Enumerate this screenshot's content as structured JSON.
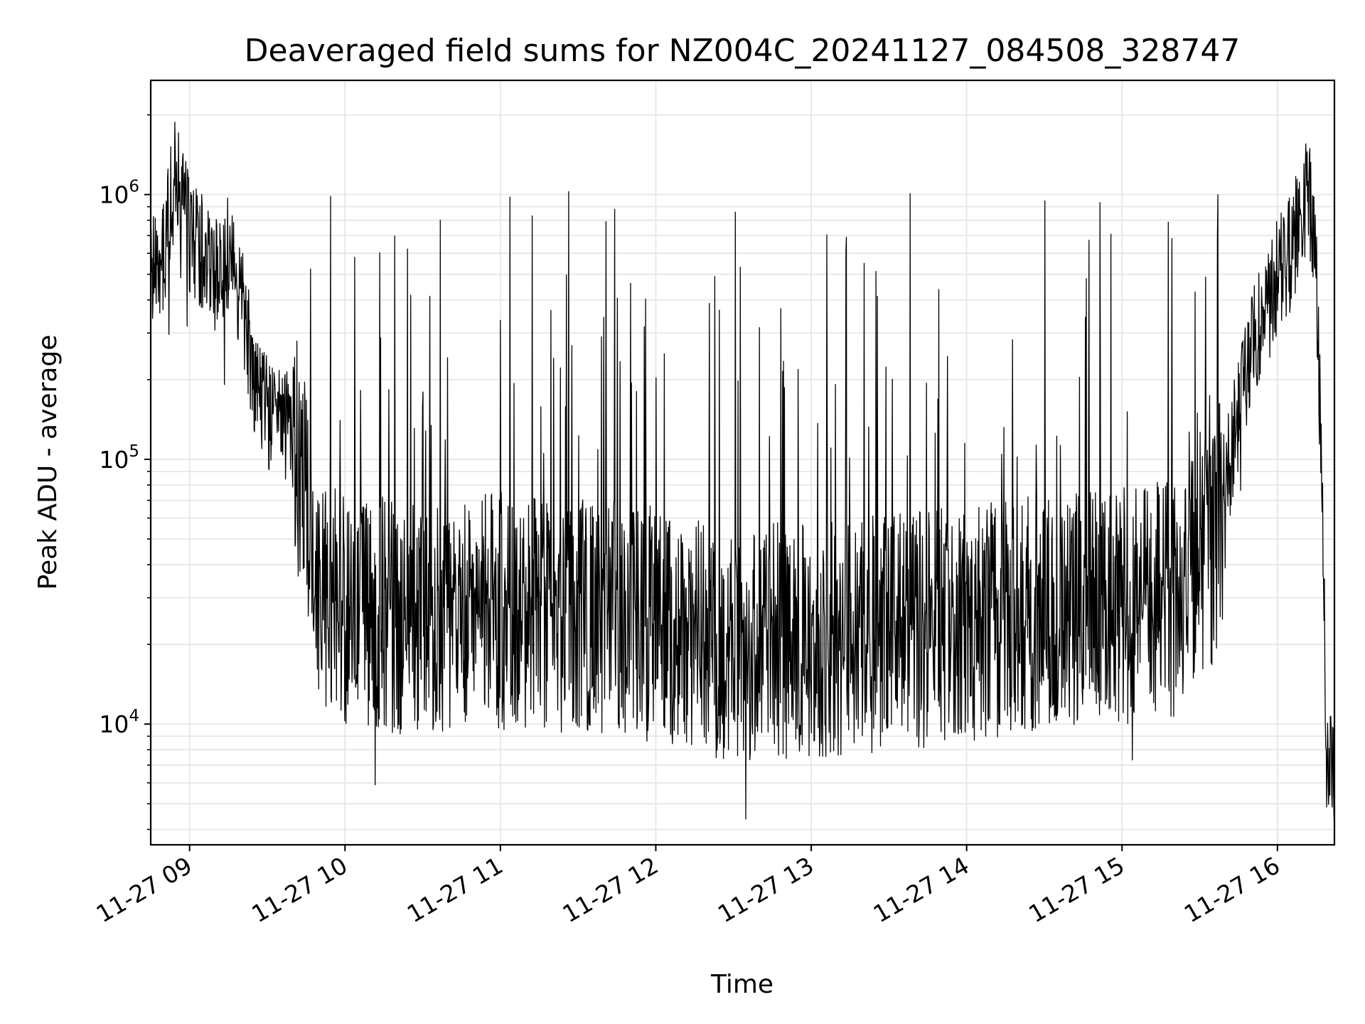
{
  "chart_data": {
    "type": "line",
    "title": "Deaveraged field sums for NZ004C_20241127_084508_328747",
    "xlabel": "Time",
    "ylabel": "Peak ADU - average",
    "yscale": "log",
    "grid": true,
    "line_color": "#000000",
    "grid_color": "#e6e6e6",
    "x_range": [
      "11-27 08:45",
      "11-27 16:22"
    ],
    "ylim": [
      3500,
      2700000
    ],
    "x_ticks": [
      "11-27 09",
      "11-27 10",
      "11-27 11",
      "11-27 12",
      "11-27 13",
      "11-27 14",
      "11-27 15",
      "11-27 16"
    ],
    "y_ticks": [
      {
        "base": "10",
        "exp": "4",
        "value": 10000
      },
      {
        "base": "10",
        "exp": "5",
        "value": 100000
      },
      {
        "base": "10",
        "exp": "6",
        "value": 1000000
      }
    ],
    "series": [
      {
        "points": [
          [
            "11-27 08:45",
            480000
          ],
          [
            "11-27 08:50",
            600000
          ],
          [
            "11-27 08:55",
            1300000
          ],
          [
            "11-27 09:00",
            700000
          ],
          [
            "11-27 09:05",
            600000
          ],
          [
            "11-27 09:10",
            500000
          ],
          [
            "11-27 09:15",
            600000
          ],
          [
            "11-27 09:20",
            400000
          ],
          [
            "11-27 09:25",
            200000
          ],
          [
            "11-27 09:30",
            150000
          ],
          [
            "11-27 09:35",
            140000
          ],
          [
            "11-27 09:40",
            120000
          ],
          [
            "11-27 09:45",
            70000
          ],
          [
            "11-27 09:50",
            35000
          ],
          [
            "11-27 09:55",
            30000
          ],
          [
            "11-27 10:00",
            28000
          ],
          [
            "11-27 10:30",
            25000
          ],
          [
            "11-27 11:00",
            27000
          ],
          [
            "11-27 11:30",
            26000
          ],
          [
            "11-27 12:00",
            24000
          ],
          [
            "11-27 12:30",
            20000
          ],
          [
            "11-27 13:00",
            21000
          ],
          [
            "11-27 13:30",
            22000
          ],
          [
            "11-27 14:00",
            24000
          ],
          [
            "11-27 14:30",
            27000
          ],
          [
            "11-27 15:00",
            28000
          ],
          [
            "11-27 15:20",
            30000
          ],
          [
            "11-27 15:25",
            40000
          ],
          [
            "11-27 15:35",
            45000
          ],
          [
            "11-27 15:40",
            80000
          ],
          [
            "11-27 15:45",
            150000
          ],
          [
            "11-27 15:50",
            280000
          ],
          [
            "11-27 15:55",
            330000
          ],
          [
            "11-27 16:00",
            500000
          ],
          [
            "11-27 16:05",
            600000
          ],
          [
            "11-27 16:10",
            900000
          ],
          [
            "11-27 16:12",
            1100000
          ],
          [
            "11-27 16:15",
            500000
          ],
          [
            "11-27 16:17",
            90000
          ],
          [
            "11-27 16:19",
            8000
          ],
          [
            "11-27 16:22",
            7000
          ]
        ]
      }
    ]
  }
}
